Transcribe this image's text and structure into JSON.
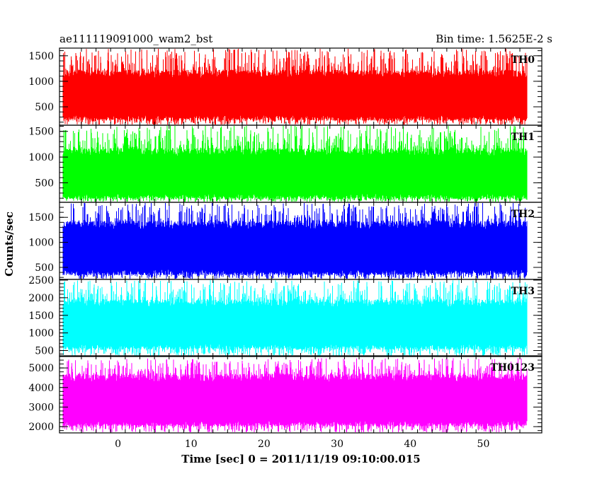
{
  "chart_data": {
    "type": "line",
    "title_left": "ae111119091000_wam2_bst",
    "title_right": "Bin time: 1.5625E-2 s",
    "xlabel": "Time [sec] 0 = 2011/11/19 09:10:00.015",
    "ylabel": "Counts/sec",
    "xlim": [
      -8,
      58
    ],
    "data_range": [
      -7.6,
      56.0
    ],
    "x_ticks": [
      0,
      10,
      20,
      30,
      40,
      50
    ],
    "x_tick_labels": [
      "0",
      "10",
      "20",
      "30",
      "40",
      "50"
    ],
    "grid": false,
    "panels": [
      {
        "name": "TH0",
        "color": "#ff0000",
        "ylim": [
          140,
          1650
        ],
        "y_ticks": [
          500,
          1000,
          1500
        ],
        "y_tick_labels": [
          "500",
          "1000",
          "1500"
        ],
        "fill_band": [
          280,
          1150
        ],
        "peak_range": [
          1100,
          1650
        ]
      },
      {
        "name": "TH1",
        "color": "#00ff00",
        "ylim": [
          120,
          1620
        ],
        "y_ticks": [
          500,
          1000,
          1500
        ],
        "y_tick_labels": [
          "500",
          "1000",
          "1500"
        ],
        "fill_band": [
          230,
          1100
        ],
        "peak_range": [
          1050,
          1620
        ]
      },
      {
        "name": "TH2",
        "color": "#0000ff",
        "ylim": [
          260,
          1800
        ],
        "y_ticks": [
          500,
          1000,
          1500
        ],
        "y_tick_labels": [
          "500",
          "1000",
          "1500"
        ],
        "fill_band": [
          400,
          1350
        ],
        "peak_range": [
          1300,
          1800
        ]
      },
      {
        "name": "TH3",
        "color": "#00ffff",
        "ylim": [
          330,
          2520
        ],
        "y_ticks": [
          500,
          1000,
          1500,
          2000,
          2500
        ],
        "y_tick_labels": [
          "500",
          "1000",
          "1500",
          "2000",
          "2500"
        ],
        "fill_band": [
          600,
          1850
        ],
        "peak_range": [
          1800,
          2500
        ]
      },
      {
        "name": "TH0123",
        "color": "#ff00ff",
        "ylim": [
          1680,
          5620
        ],
        "y_ticks": [
          2000,
          3000,
          4000,
          5000
        ],
        "y_tick_labels": [
          "2000",
          "3000",
          "4000",
          "5000"
        ],
        "fill_band": [
          2150,
          4500
        ],
        "peak_range": [
          4400,
          5500
        ]
      }
    ]
  }
}
